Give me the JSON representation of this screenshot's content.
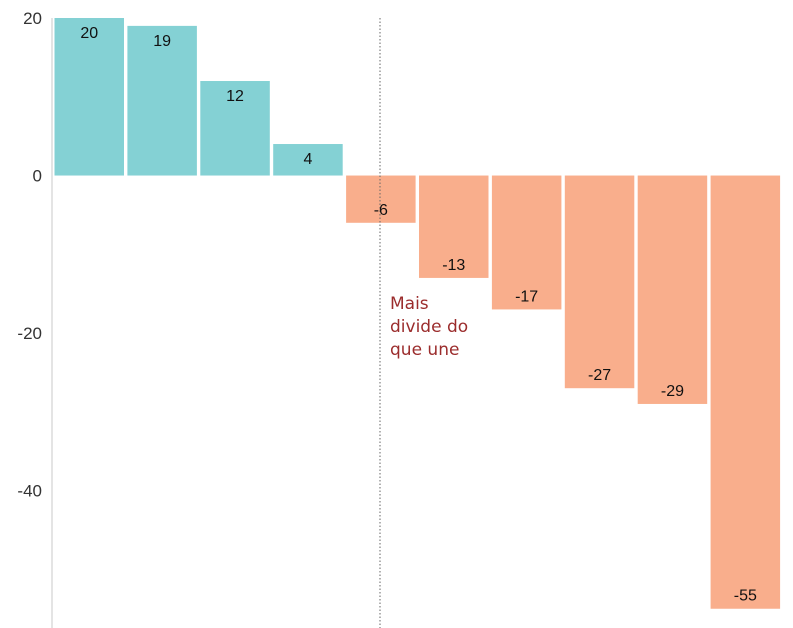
{
  "chart_data": {
    "type": "bar",
    "values": [
      20,
      19,
      12,
      4,
      -6,
      -13,
      -17,
      -27,
      -29,
      -55
    ],
    "ylim": [
      -57,
      20
    ],
    "y_ticks": [
      20,
      0,
      -20,
      -40
    ],
    "grid": false,
    "colors": {
      "positive": "#84d1d4",
      "negative": "#f9ae8c",
      "annotation": "#9b2c2c",
      "axis": "#c8c8c8",
      "divider": "#666666"
    },
    "annotation": {
      "lines": [
        "Mais",
        "divide do",
        "que une"
      ]
    }
  }
}
